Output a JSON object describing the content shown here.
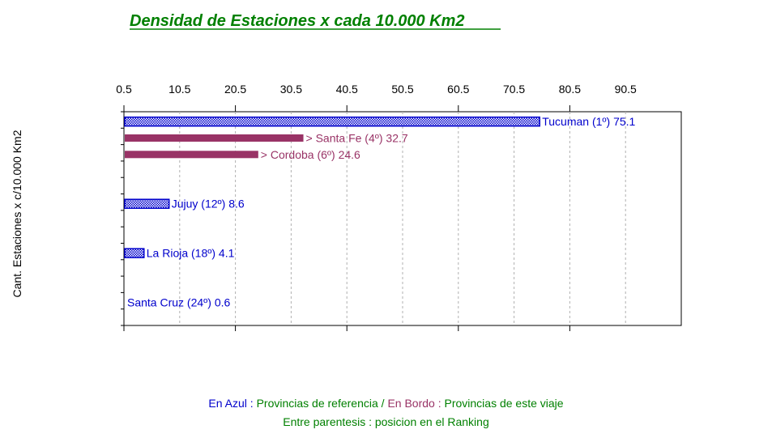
{
  "chart_data": {
    "type": "bar",
    "orientation": "horizontal",
    "title": "Densidad de Estaciones x cada 10.000 Km2",
    "ylabel": "Cant. Estaciones x c/10.000 Km2",
    "xlim": [
      0.5,
      100.5
    ],
    "x_ticks": [
      "0.5",
      "10.5",
      "20.5",
      "30.5",
      "40.5",
      "50.5",
      "60.5",
      "70.5",
      "80.5",
      "90.5"
    ],
    "x_tick_values": [
      0.5,
      10.5,
      20.5,
      30.5,
      40.5,
      50.5,
      60.5,
      70.5,
      80.5,
      90.5
    ],
    "grid": "vertical-dashed",
    "bars": [
      {
        "label": "Tucuman (1º) 75.1",
        "value": 75.1,
        "group": "referencia",
        "color": "#0000cc",
        "slot": 0
      },
      {
        "label": "> Santa Fe (4º) 32.7",
        "value": 32.7,
        "group": "este viaje",
        "color": "#993366",
        "slot": 1
      },
      {
        "label": "> Cordoba (6º) 24.6",
        "value": 24.6,
        "group": "este viaje",
        "color": "#993366",
        "slot": 2
      },
      {
        "label": "Jujuy (12º) 8.6",
        "value": 8.6,
        "group": "referencia",
        "color": "#0000cc",
        "slot": 5
      },
      {
        "label": "La Rioja (18º) 4.1",
        "value": 4.1,
        "group": "referencia",
        "color": "#0000cc",
        "slot": 8
      },
      {
        "label": "Santa Cruz (24º) 0.6",
        "value": 0.6,
        "group": "referencia",
        "color": "#0000cc",
        "slot": 11
      }
    ]
  },
  "legend": {
    "line1_blue": "En Azul :",
    "line1_green_a": " Provincias de referencia / ",
    "line1_bordo": "En Bordo :",
    "line1_green_b": " Provincias de este viaje",
    "line2": "Entre parentesis : posicion en el Ranking"
  },
  "colors": {
    "title": "#008000",
    "referencia": "#0000cc",
    "viaje": "#993366",
    "legend": "#008000"
  }
}
